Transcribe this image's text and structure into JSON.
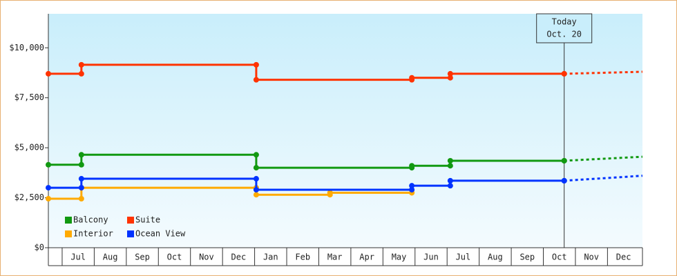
{
  "chart_data": {
    "type": "step-line",
    "categories": [
      null,
      "Jul",
      "Aug",
      "Sep",
      "Oct",
      "Nov",
      "Dec",
      "Jan",
      "Feb",
      "Mar",
      "Apr",
      "May",
      "Jun",
      "Jul",
      "Aug",
      "Sep",
      "Oct",
      "Nov",
      "Dec"
    ],
    "xlim": [
      0.57,
      19.09
    ],
    "ylim": [
      0,
      11700
    ],
    "yticks": [
      {
        "value": 0,
        "label": "$0"
      },
      {
        "value": 2500,
        "label": "$2,500"
      },
      {
        "value": 5000,
        "label": "$5,000"
      },
      {
        "value": 7500,
        "label": "$7,500"
      },
      {
        "value": 10000,
        "label": "$10,000"
      }
    ],
    "series": [
      {
        "name": "Balcony",
        "color": "#119911",
        "x": [
          0.57,
          1.6,
          7.05,
          11.9,
          13.1,
          16.65
        ],
        "values": [
          4150,
          4650,
          4000,
          4100,
          4350,
          4350
        ],
        "forecast": 4550
      },
      {
        "name": "Suite",
        "color": "#ff3300",
        "x": [
          0.57,
          1.6,
          7.05,
          11.9,
          13.1,
          16.65
        ],
        "values": [
          8700,
          9150,
          8400,
          8500,
          8700,
          8700
        ],
        "forecast": 8800
      },
      {
        "name": "Interior",
        "color": "#ffaa00",
        "x": [
          0.57,
          1.6,
          7.05,
          9.35,
          11.9
        ],
        "values": [
          2450,
          3000,
          2650,
          2750,
          2750
        ]
      },
      {
        "name": "Ocean View",
        "color": "#0033ff",
        "x": [
          0.57,
          1.6,
          7.05,
          11.9,
          13.1,
          16.65
        ],
        "values": [
          3000,
          3450,
          2900,
          3100,
          3350,
          3350
        ],
        "forecast": 3600
      }
    ],
    "today": {
      "x": 16.65,
      "label": "Today",
      "date": "Oct. 20"
    },
    "legend": "bottom-left"
  }
}
